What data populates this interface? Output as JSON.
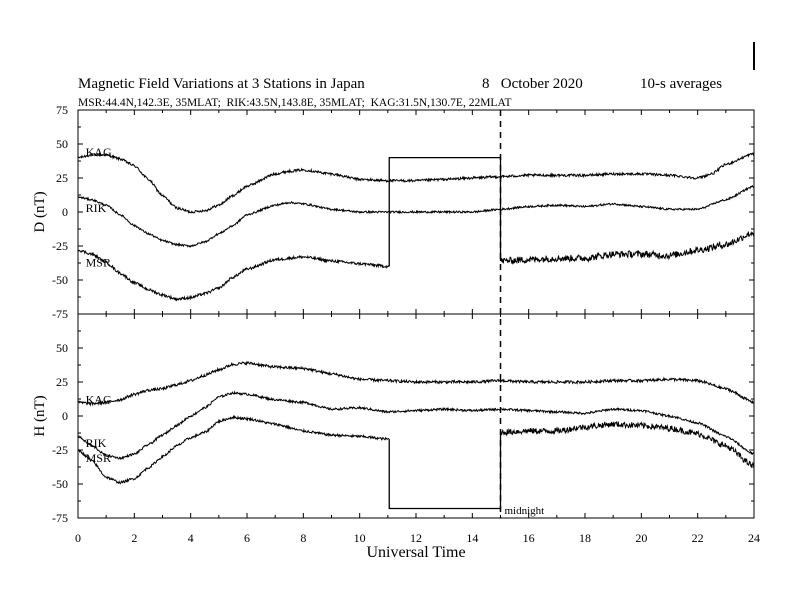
{
  "chart_data": {
    "type": "line",
    "title": "Magnetic Field Variations at 3 Stations in Japan",
    "date_text": "8   October 2020",
    "averaging_text": "10-s averages",
    "stations_line": "MSR:44.4N,142.3E, 35MLAT;  RIK:43.5N,143.8E, 35MLAT;  KAG:31.5N,130.7E, 22MLAT",
    "xlabel": "Universal Time",
    "x_ticks": [
      "0",
      "2",
      "4",
      "6",
      "8",
      "10",
      "12",
      "14",
      "16",
      "18",
      "20",
      "22",
      "24"
    ],
    "xlim": [
      0,
      24
    ],
    "midnight_marker": {
      "x": 15,
      "label": "midnight"
    },
    "panels": [
      {
        "name": "D",
        "ylabel": "D (nT)",
        "ylim": [
          -75,
          75
        ],
        "y_ticks": [
          "75",
          "50",
          "25",
          "0",
          "-25",
          "-50",
          "-75"
        ],
        "gap_box": {
          "x_start": 11.05,
          "x_end": 15.0,
          "y_level": 40
        },
        "series": [
          {
            "name": "KAG",
            "label_at": [
              0.2,
              44
            ],
            "noise": 0.9,
            "points": [
              [
                0,
                40
              ],
              [
                0.5,
                42
              ],
              [
                1,
                42
              ],
              [
                1.5,
                39
              ],
              [
                2,
                34
              ],
              [
                2.5,
                24
              ],
              [
                3,
                12
              ],
              [
                3.5,
                3
              ],
              [
                4,
                0
              ],
              [
                4.5,
                1
              ],
              [
                5,
                5
              ],
              [
                5.5,
                12
              ],
              [
                6,
                19
              ],
              [
                7,
                28
              ],
              [
                7.5,
                30
              ],
              [
                8,
                31
              ],
              [
                9,
                28
              ],
              [
                10,
                24
              ],
              [
                11,
                23
              ],
              [
                12,
                23
              ],
              [
                13,
                24
              ],
              [
                14,
                25
              ],
              [
                15,
                26
              ],
              [
                16,
                27
              ],
              [
                17,
                27
              ],
              [
                18,
                27
              ],
              [
                19,
                28
              ],
              [
                20,
                28
              ],
              [
                21,
                27
              ],
              [
                22,
                25
              ],
              [
                22.5,
                28
              ],
              [
                23,
                35
              ],
              [
                24,
                43
              ]
            ]
          },
          {
            "name": "RIK",
            "label_at": [
              0.2,
              3
            ],
            "noise": 0.7,
            "points": [
              [
                0,
                11
              ],
              [
                0.5,
                9
              ],
              [
                1,
                5
              ],
              [
                1.5,
                -2
              ],
              [
                2,
                -10
              ],
              [
                2.5,
                -16
              ],
              [
                3,
                -21
              ],
              [
                3.5,
                -24
              ],
              [
                4,
                -25
              ],
              [
                4.5,
                -22
              ],
              [
                5,
                -16
              ],
              [
                5.5,
                -10
              ],
              [
                6,
                -2
              ],
              [
                7,
                5
              ],
              [
                7.5,
                7
              ],
              [
                8,
                6
              ],
              [
                9,
                2
              ],
              [
                10,
                0
              ],
              [
                11,
                0
              ],
              [
                12,
                0
              ],
              [
                13,
                0
              ],
              [
                14,
                0
              ],
              [
                15,
                2
              ],
              [
                16,
                4
              ],
              [
                17,
                5
              ],
              [
                18,
                4
              ],
              [
                19,
                6
              ],
              [
                20,
                4
              ],
              [
                21,
                2
              ],
              [
                22,
                2
              ],
              [
                23,
                9
              ],
              [
                24,
                19
              ]
            ]
          },
          {
            "name": "MSR",
            "label_at": [
              0.2,
              -37
            ],
            "noise": 1.0,
            "noise_after": 15.0,
            "noise_after_amp": 2.5,
            "gap": [
              11.05,
              15.0
            ],
            "points": [
              [
                0,
                -28
              ],
              [
                0.5,
                -31
              ],
              [
                1,
                -37
              ],
              [
                1.5,
                -45
              ],
              [
                2,
                -52
              ],
              [
                2.5,
                -57
              ],
              [
                3,
                -61
              ],
              [
                3.5,
                -64
              ],
              [
                4,
                -63
              ],
              [
                4.5,
                -60
              ],
              [
                5,
                -56
              ],
              [
                5.5,
                -48
              ],
              [
                6,
                -42
              ],
              [
                7,
                -35
              ],
              [
                8,
                -33
              ],
              [
                9,
                -36
              ],
              [
                10,
                -38
              ],
              [
                11,
                -40
              ],
              [
                15,
                -36
              ],
              [
                16,
                -35
              ],
              [
                17,
                -34
              ],
              [
                18,
                -34
              ],
              [
                19,
                -31
              ],
              [
                20,
                -31
              ],
              [
                21,
                -32
              ],
              [
                22,
                -28
              ],
              [
                23,
                -24
              ],
              [
                24,
                -15
              ]
            ]
          }
        ]
      },
      {
        "name": "H",
        "ylabel": "H (nT)",
        "ylim": [
          -75,
          75
        ],
        "y_ticks": [
          "75",
          "50",
          "25",
          "0",
          "-25",
          "-50",
          "-75"
        ],
        "gap_box": {
          "x_start": 11.05,
          "x_end": 15.0,
          "y_level": -68
        },
        "series": [
          {
            "name": "KAG",
            "label_at": [
              0.2,
              12
            ],
            "noise": 1.0,
            "points": [
              [
                0,
                10
              ],
              [
                0.5,
                9
              ],
              [
                1,
                10
              ],
              [
                1.5,
                12
              ],
              [
                2,
                16
              ],
              [
                2.5,
                19
              ],
              [
                3,
                20
              ],
              [
                3.5,
                23
              ],
              [
                4,
                26
              ],
              [
                4.5,
                30
              ],
              [
                5,
                34
              ],
              [
                5.5,
                38
              ],
              [
                6,
                39
              ],
              [
                7,
                36
              ],
              [
                8,
                35
              ],
              [
                9,
                31
              ],
              [
                10,
                27
              ],
              [
                11,
                26
              ],
              [
                12,
                25
              ],
              [
                13,
                25
              ],
              [
                14,
                25
              ],
              [
                15,
                26
              ],
              [
                16,
                25
              ],
              [
                17,
                25
              ],
              [
                18,
                25
              ],
              [
                19,
                26
              ],
              [
                20,
                26
              ],
              [
                21,
                27
              ],
              [
                22,
                26
              ],
              [
                23,
                20
              ],
              [
                24,
                10
              ]
            ]
          },
          {
            "name": "RIK",
            "label_at": [
              0.2,
              -20
            ],
            "noise": 0.8,
            "points": [
              [
                0,
                -15
              ],
              [
                0.5,
                -22
              ],
              [
                1,
                -29
              ],
              [
                1.5,
                -31
              ],
              [
                2,
                -28
              ],
              [
                2.5,
                -21
              ],
              [
                3,
                -14
              ],
              [
                3.5,
                -7
              ],
              [
                4,
                0
              ],
              [
                4.5,
                6
              ],
              [
                5,
                14
              ],
              [
                5.5,
                17
              ],
              [
                6,
                16
              ],
              [
                7,
                12
              ],
              [
                8,
                10
              ],
              [
                9,
                5
              ],
              [
                10,
                6
              ],
              [
                11,
                3
              ],
              [
                12,
                4
              ],
              [
                13,
                5
              ],
              [
                14,
                4
              ],
              [
                15,
                5
              ],
              [
                16,
                4
              ],
              [
                17,
                3
              ],
              [
                18,
                2
              ],
              [
                19,
                5
              ],
              [
                20,
                4
              ],
              [
                21,
                0
              ],
              [
                22,
                -5
              ],
              [
                23,
                -15
              ],
              [
                24,
                -28
              ]
            ]
          },
          {
            "name": "MSR",
            "label_at": [
              0.2,
              -31
            ],
            "noise": 0.9,
            "noise_after": 15.0,
            "noise_after_amp": 2.2,
            "gap": [
              11.05,
              15.0
            ],
            "points": [
              [
                0,
                -25
              ],
              [
                0.5,
                -33
              ],
              [
                1,
                -45
              ],
              [
                1.5,
                -49
              ],
              [
                2,
                -46
              ],
              [
                2.5,
                -38
              ],
              [
                3,
                -30
              ],
              [
                3.5,
                -22
              ],
              [
                4,
                -16
              ],
              [
                4.5,
                -12
              ],
              [
                5,
                -4
              ],
              [
                5.5,
                -1
              ],
              [
                6,
                -2
              ],
              [
                7,
                -6
              ],
              [
                8,
                -11
              ],
              [
                9,
                -14
              ],
              [
                10,
                -15
              ],
              [
                11,
                -17
              ],
              [
                15,
                -12
              ],
              [
                16,
                -11
              ],
              [
                17,
                -11
              ],
              [
                18,
                -8
              ],
              [
                19,
                -6
              ],
              [
                20,
                -7
              ],
              [
                21,
                -9
              ],
              [
                22,
                -13
              ],
              [
                23,
                -22
              ],
              [
                24,
                -37
              ]
            ]
          }
        ]
      }
    ]
  }
}
